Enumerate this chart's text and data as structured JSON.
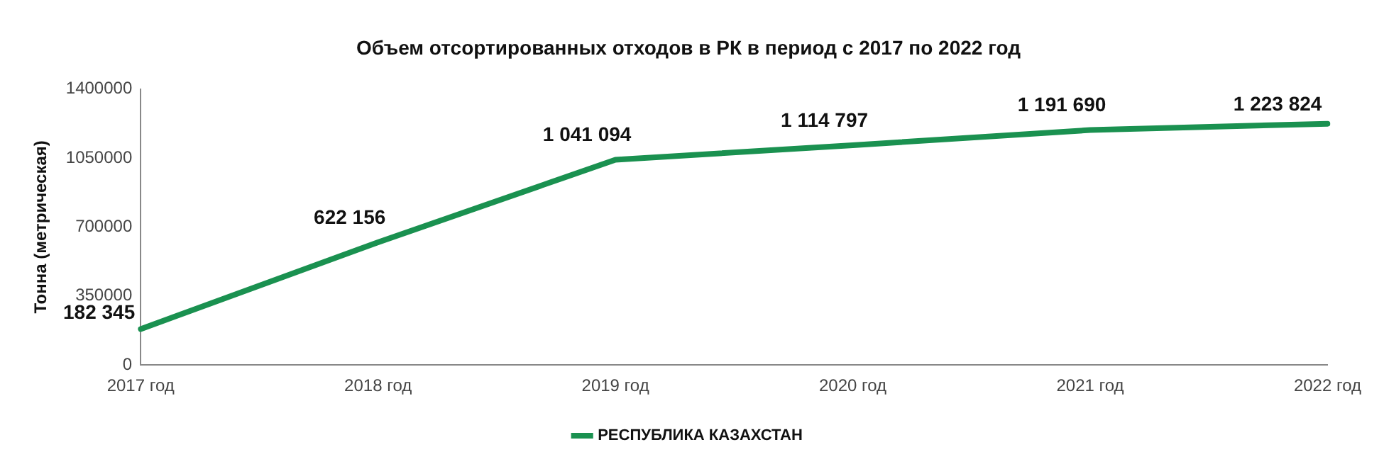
{
  "chart_data": {
    "type": "line",
    "title": "Объем отсортированных отходов в РК в период с 2017 по 2022 год",
    "ylabel": "Тонна (метрическая)",
    "categories": [
      "2017 год",
      "2018 год",
      "2019 год",
      "2020 год",
      "2021 год",
      "2022 год"
    ],
    "series": [
      {
        "name": "РЕСПУБЛИКА КАЗАХСТАН",
        "color": "#1a9150",
        "values": [
          182345,
          622156,
          1041094,
          1114797,
          1191690,
          1223824
        ],
        "value_labels": [
          "182 345",
          "622 156",
          "1 041 094",
          "1 114 797",
          "1 191 690",
          "1 223 824"
        ]
      }
    ],
    "ylim": [
      0,
      1400000
    ],
    "yticks": [
      0,
      350000,
      700000,
      1050000,
      1400000
    ],
    "grid": false,
    "legend": "bottom",
    "marker": "none",
    "line_style": "solid"
  }
}
